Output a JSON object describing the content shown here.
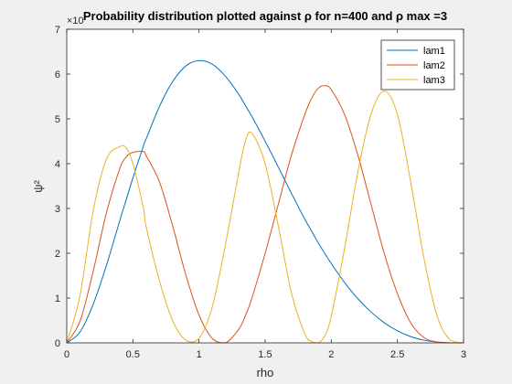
{
  "chart_data": {
    "type": "line",
    "title": "Probability distribution plotted against ρ for n=400 and ρ max =3",
    "xlabel": "rho",
    "ylabel": "ψ²",
    "y_exponent_label": "×10",
    "xlim": [
      0,
      3
    ],
    "ylim": [
      0,
      7
    ],
    "x_ticks": [
      "0",
      "0.5",
      "1",
      "1.5",
      "2",
      "2.5",
      "3"
    ],
    "y_ticks": [
      "0",
      "1",
      "2",
      "3",
      "4",
      "5",
      "6",
      "7"
    ],
    "grid": false,
    "legend_position": "top-right",
    "x": [
      0.0,
      0.1,
      0.2,
      0.3,
      0.4,
      0.45,
      0.5,
      0.58,
      0.6,
      0.7,
      0.8,
      0.9,
      1.0,
      1.1,
      1.2,
      1.3,
      1.35,
      1.4,
      1.5,
      1.6,
      1.7,
      1.8,
      1.85,
      1.9,
      1.95,
      2.0,
      2.1,
      2.2,
      2.3,
      2.4,
      2.5,
      2.6,
      2.7,
      2.8,
      2.9,
      3.0
    ],
    "series": [
      {
        "name": "lam1",
        "color": "#0072BD",
        "values": [
          0.0,
          0.24,
          0.86,
          1.73,
          2.72,
          3.2,
          3.68,
          4.4,
          4.55,
          5.27,
          5.83,
          6.18,
          6.3,
          6.22,
          5.95,
          5.55,
          5.3,
          5.05,
          4.5,
          3.92,
          3.33,
          2.76,
          2.5,
          2.24,
          2.0,
          1.77,
          1.35,
          0.99,
          0.69,
          0.45,
          0.27,
          0.14,
          0.06,
          0.02,
          0.0,
          0.0
        ]
      },
      {
        "name": "lam2",
        "color": "#D95319",
        "values": [
          0.0,
          0.48,
          1.6,
          2.9,
          3.88,
          4.15,
          4.25,
          4.27,
          4.18,
          3.6,
          2.62,
          1.52,
          0.62,
          0.1,
          0.0,
          0.3,
          0.6,
          1.0,
          2.0,
          3.1,
          4.2,
          5.1,
          5.45,
          5.68,
          5.74,
          5.65,
          5.1,
          4.2,
          3.1,
          2.0,
          1.1,
          0.45,
          0.12,
          0.02,
          0.0,
          0.0
        ]
      },
      {
        "name": "lam3",
        "color": "#EDB120",
        "values": [
          0.0,
          1.05,
          2.95,
          4.1,
          4.38,
          4.35,
          4.0,
          3.0,
          2.6,
          1.4,
          0.5,
          0.06,
          0.1,
          0.8,
          2.2,
          3.8,
          4.5,
          4.68,
          4.0,
          2.6,
          1.1,
          0.2,
          0.03,
          0.0,
          0.15,
          0.6,
          2.1,
          3.8,
          5.1,
          5.62,
          5.1,
          3.6,
          1.9,
          0.6,
          0.06,
          0.0
        ]
      }
    ]
  }
}
